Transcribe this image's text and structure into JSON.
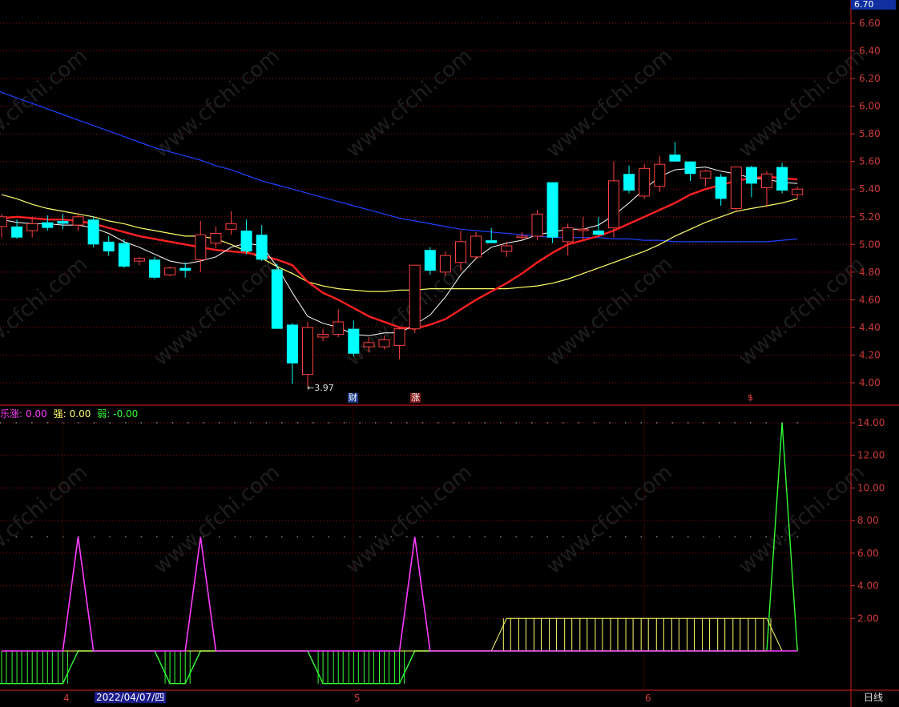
{
  "header": {
    "price_box": "6.70"
  },
  "legend": {
    "items": [
      {
        "label": "乐涨:",
        "value": "0.00",
        "color": "#ff3cff"
      },
      {
        "label": "强:",
        "value": "0.00",
        "color": "#ffff66"
      },
      {
        "label": "弱:",
        "value": "-0.00",
        "color": "#33ff33"
      }
    ]
  },
  "footer": {
    "date": "2022/04/07/四",
    "period": "日线",
    "months": [
      "4",
      "5",
      "6"
    ]
  },
  "markers": {
    "low_label": "3.97",
    "cai": "财",
    "zhang": "涨",
    "dollar": "$"
  },
  "colors": {
    "up": "#ff4040",
    "down": "#00ffff",
    "ma5": "#ffffff",
    "ma10": "#ff2020",
    "ma20": "#ffff66",
    "ma60": "#2040ff",
    "grid": "#a01010",
    "strong": "#ffff66",
    "weak": "#33ff33",
    "rise": "#ff3cff"
  },
  "chart_data": [
    {
      "type": "candlestick",
      "y_ticks": [
        "6.60",
        "6.40",
        "6.20",
        "6.00",
        "5.80",
        "5.60",
        "5.40",
        "5.20",
        "5.00",
        "4.80",
        "4.60",
        "4.40",
        "4.20",
        "4.00"
      ],
      "ylim": [
        3.93,
        6.72
      ],
      "candles": [
        {
          "o": 5.13,
          "h": 5.22,
          "l": 5.05,
          "c": 5.2
        },
        {
          "o": 5.13,
          "h": 5.18,
          "l": 5.04,
          "c": 5.05
        },
        {
          "o": 5.1,
          "h": 5.2,
          "l": 5.05,
          "c": 5.15
        },
        {
          "o": 5.16,
          "h": 5.21,
          "l": 5.1,
          "c": 5.12
        },
        {
          "o": 5.17,
          "h": 5.22,
          "l": 5.11,
          "c": 5.15
        },
        {
          "o": 5.14,
          "h": 5.23,
          "l": 5.1,
          "c": 5.2
        },
        {
          "o": 5.18,
          "h": 5.2,
          "l": 4.98,
          "c": 5.0
        },
        {
          "o": 5.02,
          "h": 5.06,
          "l": 4.92,
          "c": 4.95
        },
        {
          "o": 5.01,
          "h": 5.04,
          "l": 4.83,
          "c": 4.84
        },
        {
          "o": 4.88,
          "h": 4.91,
          "l": 4.85,
          "c": 4.9
        },
        {
          "o": 4.89,
          "h": 4.91,
          "l": 4.75,
          "c": 4.76
        },
        {
          "o": 4.78,
          "h": 4.84,
          "l": 4.77,
          "c": 4.83
        },
        {
          "o": 4.83,
          "h": 4.87,
          "l": 4.76,
          "c": 4.81
        },
        {
          "o": 4.89,
          "h": 5.17,
          "l": 4.8,
          "c": 5.07
        },
        {
          "o": 5.01,
          "h": 5.13,
          "l": 4.97,
          "c": 5.08
        },
        {
          "o": 5.11,
          "h": 5.24,
          "l": 5.07,
          "c": 5.15
        },
        {
          "o": 5.1,
          "h": 5.18,
          "l": 4.93,
          "c": 4.95
        },
        {
          "o": 5.07,
          "h": 5.14,
          "l": 4.88,
          "c": 4.89
        },
        {
          "o": 4.82,
          "h": 4.86,
          "l": 4.4,
          "c": 4.39
        },
        {
          "o": 4.42,
          "h": 4.43,
          "l": 3.99,
          "c": 4.14
        },
        {
          "o": 4.06,
          "h": 4.44,
          "l": 3.97,
          "c": 4.4
        },
        {
          "o": 4.33,
          "h": 4.39,
          "l": 4.3,
          "c": 4.35
        },
        {
          "o": 4.35,
          "h": 4.53,
          "l": 4.33,
          "c": 4.44
        },
        {
          "o": 4.39,
          "h": 4.45,
          "l": 4.19,
          "c": 4.21
        },
        {
          "o": 4.26,
          "h": 4.33,
          "l": 4.22,
          "c": 4.29
        },
        {
          "o": 4.26,
          "h": 4.34,
          "l": 4.24,
          "c": 4.31
        },
        {
          "o": 4.27,
          "h": 4.4,
          "l": 4.17,
          "c": 4.39
        },
        {
          "o": 4.39,
          "h": 4.85,
          "l": 4.36,
          "c": 4.85
        },
        {
          "o": 4.96,
          "h": 4.98,
          "l": 4.78,
          "c": 4.81
        },
        {
          "o": 4.8,
          "h": 4.95,
          "l": 4.77,
          "c": 4.92
        },
        {
          "o": 4.87,
          "h": 5.1,
          "l": 4.81,
          "c": 5.02
        },
        {
          "o": 4.91,
          "h": 5.09,
          "l": 4.89,
          "c": 5.06
        },
        {
          "o": 5.03,
          "h": 5.12,
          "l": 5.01,
          "c": 5.01
        },
        {
          "o": 4.95,
          "h": 5.02,
          "l": 4.91,
          "c": 4.99
        },
        {
          "o": 5.05,
          "h": 5.09,
          "l": 5.03,
          "c": 5.06
        },
        {
          "o": 5.06,
          "h": 5.25,
          "l": 5.03,
          "c": 5.22
        },
        {
          "o": 5.45,
          "h": 5.45,
          "l": 5.01,
          "c": 5.05
        },
        {
          "o": 5.02,
          "h": 5.15,
          "l": 4.92,
          "c": 5.12
        },
        {
          "o": 5.1,
          "h": 5.2,
          "l": 5.03,
          "c": 5.11
        },
        {
          "o": 5.1,
          "h": 5.2,
          "l": 5.07,
          "c": 5.07
        },
        {
          "o": 5.12,
          "h": 5.6,
          "l": 5.05,
          "c": 5.46
        },
        {
          "o": 5.51,
          "h": 5.57,
          "l": 5.37,
          "c": 5.39
        },
        {
          "o": 5.35,
          "h": 5.58,
          "l": 5.33,
          "c": 5.55
        },
        {
          "o": 5.42,
          "h": 5.64,
          "l": 5.38,
          "c": 5.58
        },
        {
          "o": 5.65,
          "h": 5.74,
          "l": 5.6,
          "c": 5.6
        },
        {
          "o": 5.6,
          "h": 5.6,
          "l": 5.46,
          "c": 5.51
        },
        {
          "o": 5.48,
          "h": 5.54,
          "l": 5.42,
          "c": 5.53
        },
        {
          "o": 5.49,
          "h": 5.51,
          "l": 5.28,
          "c": 5.33
        },
        {
          "o": 5.26,
          "h": 5.56,
          "l": 5.24,
          "c": 5.56
        },
        {
          "o": 5.56,
          "h": 5.57,
          "l": 5.34,
          "c": 5.44
        },
        {
          "o": 5.41,
          "h": 5.53,
          "l": 5.27,
          "c": 5.51
        },
        {
          "o": 5.56,
          "h": 5.59,
          "l": 5.37,
          "c": 5.39
        },
        {
          "o": 5.36,
          "h": 5.42,
          "l": 5.33,
          "c": 5.4
        }
      ],
      "ma5": [
        5.18,
        5.16,
        5.15,
        5.15,
        5.14,
        5.14,
        5.12,
        5.08,
        5.02,
        4.98,
        4.93,
        4.88,
        4.86,
        4.88,
        4.91,
        4.98,
        5.01,
        4.99,
        4.84,
        4.65,
        4.48,
        4.43,
        4.4,
        4.35,
        4.34,
        4.36,
        4.36,
        4.42,
        4.49,
        4.62,
        4.78,
        4.9,
        4.98,
        5.01,
        5.03,
        5.07,
        5.09,
        5.11,
        5.11,
        5.14,
        5.21,
        5.3,
        5.4,
        5.49,
        5.54,
        5.55,
        5.56,
        5.53,
        5.51,
        5.48,
        5.47,
        5.45,
        5.44
      ],
      "ma10": [
        5.19,
        5.2,
        5.19,
        5.18,
        5.18,
        5.17,
        5.15,
        5.12,
        5.09,
        5.06,
        5.04,
        5.02,
        5.0,
        4.98,
        4.96,
        4.95,
        4.94,
        4.92,
        4.89,
        4.85,
        4.73,
        4.65,
        4.6,
        4.54,
        4.48,
        4.44,
        4.4,
        4.39,
        4.42,
        4.46,
        4.53,
        4.6,
        4.66,
        4.72,
        4.79,
        4.87,
        4.94,
        5.0,
        5.03,
        5.06,
        5.1,
        5.15,
        5.2,
        5.25,
        5.3,
        5.36,
        5.4,
        5.43,
        5.46,
        5.48,
        5.49,
        5.48,
        5.47
      ],
      "ma20": [
        5.36,
        5.33,
        5.29,
        5.26,
        5.24,
        5.22,
        5.2,
        5.17,
        5.15,
        5.12,
        5.1,
        5.08,
        5.06,
        5.06,
        5.04,
        5.0,
        4.95,
        4.9,
        4.84,
        4.79,
        4.73,
        4.7,
        4.68,
        4.67,
        4.66,
        4.66,
        4.67,
        4.67,
        4.68,
        4.68,
        4.68,
        4.68,
        4.68,
        4.68,
        4.69,
        4.7,
        4.72,
        4.75,
        4.79,
        4.83,
        4.87,
        4.91,
        4.95,
        5.0,
        5.06,
        5.11,
        5.16,
        5.2,
        5.24,
        5.26,
        5.28,
        5.3,
        5.33
      ],
      "ma60": [
        6.1,
        6.06,
        6.02,
        5.98,
        5.94,
        5.9,
        5.86,
        5.82,
        5.78,
        5.74,
        5.7,
        5.67,
        5.64,
        5.61,
        5.57,
        5.54,
        5.5,
        5.46,
        5.43,
        5.4,
        5.37,
        5.34,
        5.31,
        5.28,
        5.25,
        5.22,
        5.19,
        5.17,
        5.15,
        5.13,
        5.11,
        5.1,
        5.09,
        5.08,
        5.07,
        5.06,
        5.05,
        5.05,
        5.05,
        5.05,
        5.04,
        5.04,
        5.03,
        5.03,
        5.02,
        5.02,
        5.02,
        5.02,
        5.02,
        5.02,
        5.02,
        5.03,
        5.04
      ]
    },
    {
      "type": "line",
      "y_ticks": [
        "14.00",
        "12.00",
        "10.00",
        "8.00",
        "6.00",
        "4.00",
        "2.00"
      ],
      "ylim": [
        -2.1,
        14.8
      ],
      "series": [
        {
          "name": "乐涨",
          "values": [
            0,
            0,
            0,
            0,
            0,
            7,
            0,
            0,
            0,
            0,
            0,
            0,
            0,
            7,
            0,
            0,
            0,
            0,
            0,
            0,
            0,
            0,
            0,
            0,
            0,
            0,
            0,
            7,
            0,
            0,
            0,
            0,
            0,
            0,
            0,
            0,
            0,
            0,
            0,
            0,
            0,
            0,
            0,
            0,
            0,
            0,
            0,
            0,
            0,
            0,
            0,
            0,
            0
          ]
        },
        {
          "name": "强",
          "values": [
            0,
            0,
            0,
            0,
            0,
            0,
            0,
            0,
            0,
            0,
            0,
            0,
            0,
            0,
            0,
            0,
            0,
            0,
            0,
            0,
            0,
            0,
            0,
            0,
            0,
            0,
            0,
            0,
            0,
            0,
            0,
            0,
            0,
            2,
            2,
            2,
            2,
            2,
            2,
            2,
            2,
            2,
            2,
            2,
            2,
            2,
            2,
            2,
            2,
            2,
            2,
            0,
            0
          ]
        },
        {
          "name": "弱",
          "values": [
            -2,
            -2,
            -2,
            -2,
            -2,
            0,
            0,
            0,
            0,
            0,
            0,
            -2,
            -2,
            0,
            0,
            0,
            0,
            0,
            0,
            0,
            0,
            -2,
            -2,
            -2,
            -2,
            -2,
            -2,
            0,
            0,
            0,
            0,
            0,
            0,
            0,
            0,
            0,
            0,
            0,
            0,
            0,
            0,
            0,
            0,
            0,
            0,
            0,
            0,
            0,
            0,
            0,
            0,
            14,
            0
          ]
        }
      ]
    }
  ]
}
